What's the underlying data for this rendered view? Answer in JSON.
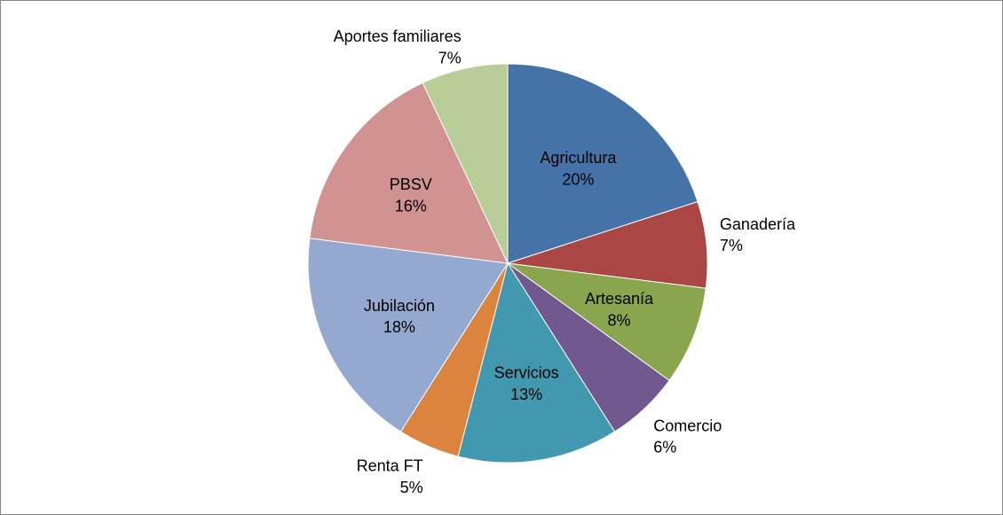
{
  "chart_data": {
    "type": "pie",
    "categories": [
      "Agricultura",
      "Ganadería",
      "Artesanía",
      "Comercio",
      "Servicios",
      "Renta FT",
      "Jubilación",
      "PBSV",
      "Aportes familiares"
    ],
    "values": [
      20,
      7,
      8,
      6,
      13,
      5,
      18,
      16,
      7
    ],
    "value_labels": [
      "20%",
      "7%",
      "8%",
      "6%",
      "13%",
      "5%",
      "18%",
      "16%",
      "7%"
    ],
    "colors": [
      "#4572a7",
      "#aa4643",
      "#89a54e",
      "#71588f",
      "#4198af",
      "#db843d",
      "#93a9cf",
      "#d19392",
      "#b9cd96"
    ]
  }
}
